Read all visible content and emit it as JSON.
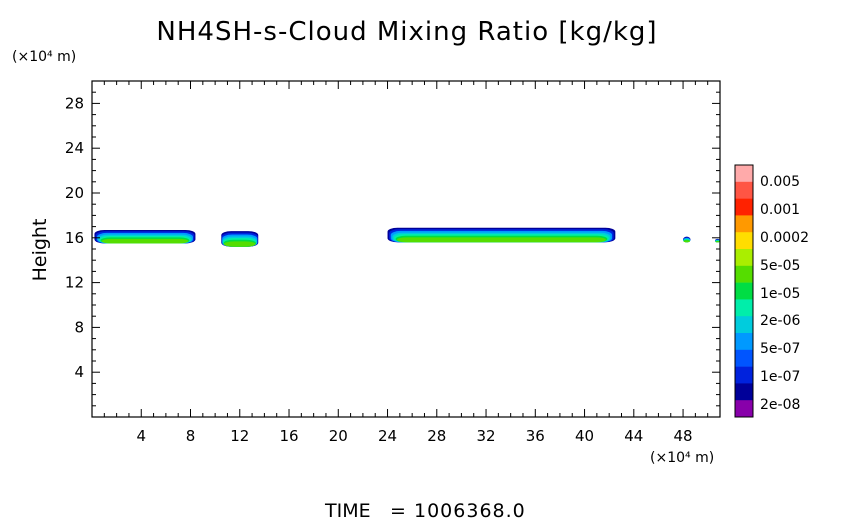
{
  "chart_data": {
    "type": "heatmap",
    "title": "NH4SH-s-Cloud Mixing Ratio [kg/kg]",
    "ylabel": "Height",
    "y_unit": "(×10⁴ m)",
    "x_unit": "(×10⁴ m)",
    "xlim": [
      0,
      51
    ],
    "ylim": [
      0,
      30
    ],
    "xticks": [
      "4",
      "8",
      "12",
      "16",
      "20",
      "24",
      "28",
      "32",
      "36",
      "40",
      "44",
      "48"
    ],
    "yticks": [
      "4",
      "8",
      "12",
      "16",
      "20",
      "24",
      "28"
    ],
    "colorbar": {
      "labels": [
        "0.005",
        "0.001",
        "0.0002",
        "5e-05",
        "1e-05",
        "2e-06",
        "5e-07",
        "1e-07",
        "2e-08"
      ],
      "colors": [
        "#ffaaaa",
        "#ff5544",
        "#ff2200",
        "#ff9900",
        "#ffdd00",
        "#aaee00",
        "#55dd00",
        "#00dd44",
        "#00eeaa",
        "#00ccdd",
        "#0099ff",
        "#0055ff",
        "#0022dd",
        "#000099",
        "#8800aa"
      ]
    },
    "cloud_bands": [
      {
        "x_start": 0.2,
        "x_end": 8.4,
        "y_bottom": 15.5,
        "y_top": 16.7
      },
      {
        "x_start": 10.5,
        "x_end": 13.5,
        "y_bottom": 15.2,
        "y_top": 16.6
      },
      {
        "x_start": 24.0,
        "x_end": 42.5,
        "y_bottom": 15.6,
        "y_top": 16.9
      },
      {
        "x_start": 48.0,
        "x_end": 48.6,
        "y_bottom": 15.6,
        "y_top": 16.1
      },
      {
        "x_start": 50.6,
        "x_end": 51.0,
        "y_bottom": 15.6,
        "y_top": 15.9
      }
    ],
    "time_label": "TIME",
    "time_value": "1006368.0"
  }
}
